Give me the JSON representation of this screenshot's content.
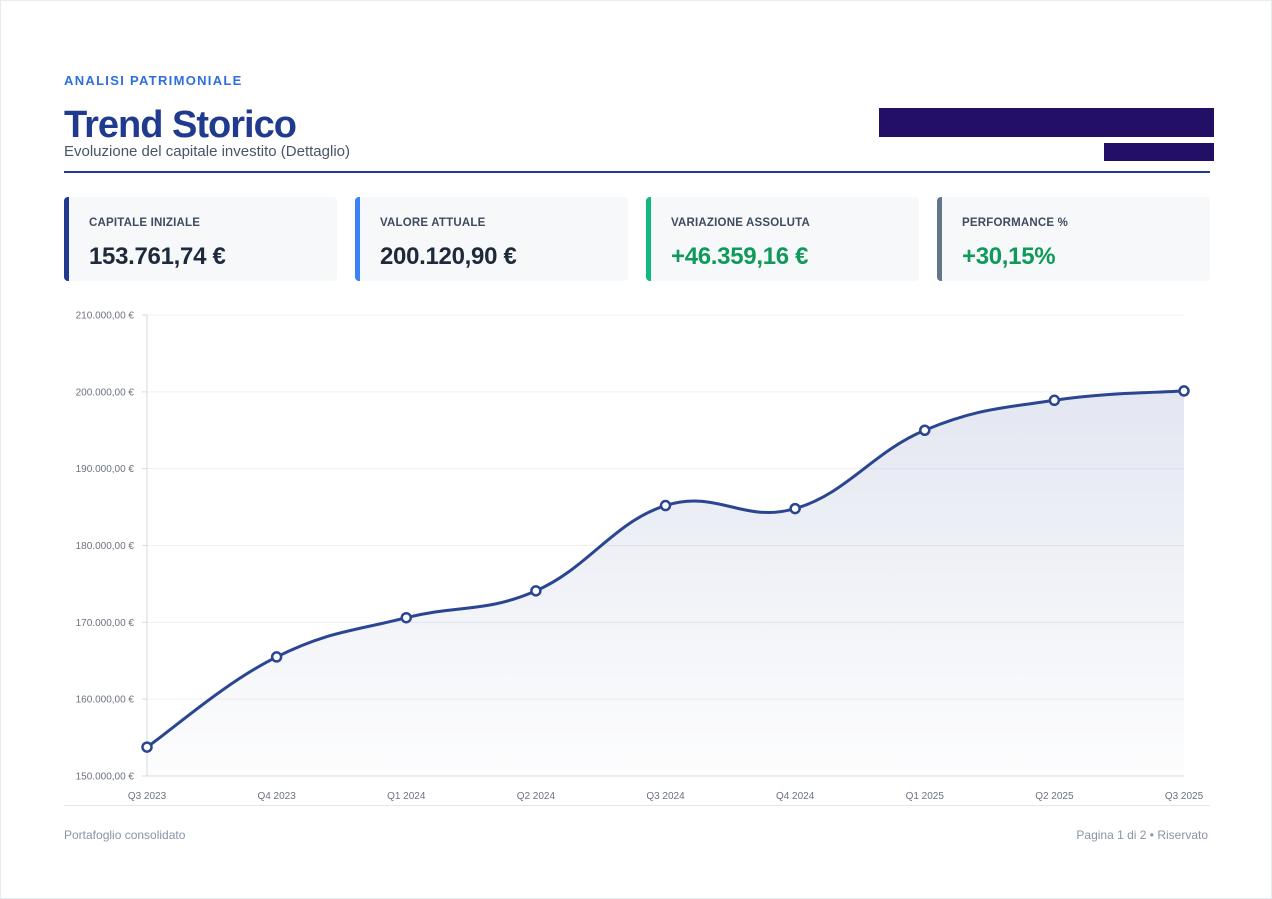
{
  "header": {
    "eyebrow": "ANALISI PATRIMONIALE",
    "title": "Trend Storico",
    "subtitle": "Evoluzione del capitale investito (Dettaglio)"
  },
  "kpis": [
    {
      "label": "CAPITALE INIZIALE",
      "value": "153.761,74 €",
      "accent": "#1f3a8f",
      "value_color": "#1e293b"
    },
    {
      "label": "VALORE ATTUALE",
      "value": "200.120,90 €",
      "accent": "#3b82f6",
      "value_color": "#1e293b"
    },
    {
      "label": "VARIAZIONE ASSOLUTA",
      "value": "+46.359,16 €",
      "accent": "#10b981",
      "value_color": "#0f9a5b"
    },
    {
      "label": "PERFORMANCE %",
      "value": "+30,15%",
      "accent": "#64748b",
      "value_color": "#0f9a5b"
    }
  ],
  "chart_data": {
    "type": "area",
    "categories": [
      "Q3 2023",
      "Q4 2023",
      "Q1 2024",
      "Q2 2024",
      "Q3 2024",
      "Q4 2024",
      "Q1 2025",
      "Q2 2025",
      "Q3 2025"
    ],
    "series": [
      {
        "values": [
          153761.74,
          165500,
          170600,
          174100,
          185200,
          184800,
          195000,
          198900,
          200120.9
        ],
        "color": "#2a4591"
      }
    ],
    "ylim": [
      150000,
      210000
    ],
    "yticks": [
      150000,
      160000,
      170000,
      180000,
      190000,
      200000,
      210000
    ],
    "ytick_labels": [
      "150.000,00 €",
      "160.000,00 €",
      "170.000,00 €",
      "180.000,00 €",
      "190.000,00 €",
      "200.000,00 €",
      "210.000,00 €"
    ],
    "grid": true,
    "legend": "none"
  },
  "footer": {
    "left": "Portafoglio consolidato",
    "right": "Pagina 1 di 2 • Riservato"
  }
}
